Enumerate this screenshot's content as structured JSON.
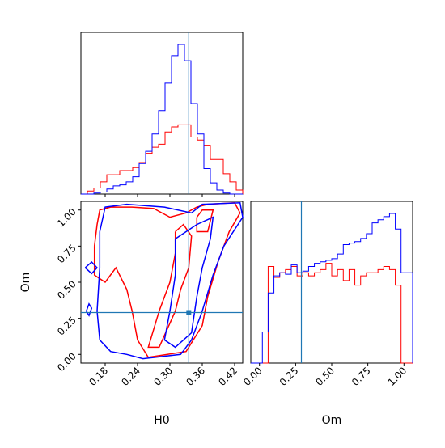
{
  "chart_data": {
    "type": "corner",
    "parameters": [
      "H0",
      "Om"
    ],
    "truth": {
      "H0": 0.335,
      "Om": 0.29
    },
    "colors": {
      "series_a": "#ff0000",
      "series_b": "#0000ff",
      "truth": "#1f77b4"
    },
    "hist_H0": {
      "bin_edges": [
        0.135,
        0.147,
        0.159,
        0.171,
        0.183,
        0.195,
        0.207,
        0.219,
        0.231,
        0.243,
        0.255,
        0.267,
        0.279,
        0.291,
        0.303,
        0.315,
        0.327,
        0.339,
        0.351,
        0.363,
        0.375,
        0.387,
        0.399,
        0.411,
        0.423,
        0.435
      ],
      "series": [
        {
          "color": "red",
          "counts": [
            0,
            3,
            6,
            12,
            19,
            19,
            23,
            23,
            26,
            31,
            40,
            46,
            49,
            61,
            66,
            68,
            68,
            56,
            53,
            48,
            34,
            34,
            20,
            12,
            4
          ]
        },
        {
          "color": "blue",
          "counts": [
            0,
            0,
            1,
            2,
            5,
            8,
            9,
            12,
            17,
            30,
            42,
            59,
            82,
            109,
            136,
            147,
            131,
            89,
            59,
            25,
            11,
            4,
            1,
            0,
            0
          ]
        }
      ]
    },
    "hist_Om": {
      "bin_edges": [
        -0.06,
        -0.02,
        0.02,
        0.06,
        0.1,
        0.14,
        0.18,
        0.22,
        0.26,
        0.3,
        0.34,
        0.38,
        0.42,
        0.46,
        0.5,
        0.54,
        0.58,
        0.62,
        0.66,
        0.7,
        0.74,
        0.78,
        0.82,
        0.86,
        0.9,
        0.94,
        0.98,
        1.02,
        1.06
      ],
      "series": [
        {
          "color": "red",
          "counts": [
            0,
            0,
            0,
            62,
            55,
            58,
            60,
            62,
            56,
            58,
            56,
            58,
            60,
            64,
            56,
            60,
            53,
            60,
            50,
            56,
            58,
            58,
            60,
            62,
            60,
            50,
            0,
            0
          ]
        },
        {
          "color": "blue",
          "counts": [
            0,
            0,
            20,
            45,
            56,
            58,
            57,
            63,
            58,
            59,
            62,
            64,
            65,
            66,
            67,
            70,
            76,
            77,
            78,
            80,
            83,
            90,
            92,
            94,
            96,
            86,
            58,
            58
          ]
        }
      ]
    },
    "xlabel_H0": "H0",
    "xlabel_Om": "Om",
    "ylabel_Om": "Om",
    "xticks_H0": [
      "0.18",
      "0.24",
      "0.30",
      "0.36",
      "0.42"
    ],
    "xticks_H0_values": [
      0.18,
      0.24,
      0.3,
      0.36,
      0.42
    ],
    "yticks_Om": [
      "0.00",
      "0.25",
      "0.50",
      "0.75",
      "1.00"
    ],
    "yticks_Om_values": [
      0.0,
      0.25,
      0.5,
      0.75,
      1.0
    ],
    "xticks_Om": [
      "0.00",
      "0.25",
      "0.50",
      "0.75",
      "1.00"
    ],
    "xticks_Om_values": [
      0.0,
      0.25,
      0.5,
      0.75,
      1.0
    ],
    "xlim_H0": [
      0.135,
      0.435
    ],
    "ylim_Om": [
      -0.06,
      1.06
    ],
    "xlim_Om": [
      -0.06,
      1.06
    ],
    "contours": [
      {
        "color": "red",
        "points": [
          [
            0.16,
            0.75
          ],
          [
            0.165,
            0.9
          ],
          [
            0.17,
            1.0
          ],
          [
            0.19,
            1.02
          ],
          [
            0.23,
            1.02
          ],
          [
            0.27,
            1.01
          ],
          [
            0.3,
            0.95
          ],
          [
            0.33,
            0.98
          ],
          [
            0.35,
            1.02
          ],
          [
            0.37,
            1.04
          ],
          [
            0.42,
            1.05
          ],
          [
            0.43,
            0.98
          ],
          [
            0.41,
            0.85
          ],
          [
            0.39,
            0.65
          ],
          [
            0.37,
            0.4
          ],
          [
            0.36,
            0.2
          ],
          [
            0.33,
            0.02
          ],
          [
            0.26,
            -0.02
          ],
          [
            0.24,
            0.1
          ],
          [
            0.23,
            0.3
          ],
          [
            0.22,
            0.45
          ],
          [
            0.2,
            0.6
          ],
          [
            0.18,
            0.5
          ],
          [
            0.16,
            0.55
          ],
          [
            0.16,
            0.75
          ]
        ]
      },
      {
        "color": "red",
        "points": [
          [
            0.35,
            0.95
          ],
          [
            0.36,
            1.0
          ],
          [
            0.38,
            1.0
          ],
          [
            0.37,
            0.85
          ],
          [
            0.35,
            0.85
          ],
          [
            0.35,
            0.95
          ]
        ]
      },
      {
        "color": "red",
        "points": [
          [
            0.31,
            0.85
          ],
          [
            0.325,
            0.9
          ],
          [
            0.34,
            0.82
          ],
          [
            0.335,
            0.6
          ],
          [
            0.32,
            0.45
          ],
          [
            0.31,
            0.3
          ],
          [
            0.28,
            0.05
          ],
          [
            0.26,
            0.05
          ],
          [
            0.28,
            0.3
          ],
          [
            0.3,
            0.5
          ],
          [
            0.31,
            0.7
          ],
          [
            0.31,
            0.85
          ]
        ]
      },
      {
        "color": "blue",
        "points": [
          [
            0.17,
            0.85
          ],
          [
            0.18,
            1.02
          ],
          [
            0.22,
            1.04
          ],
          [
            0.29,
            1.02
          ],
          [
            0.34,
            0.98
          ],
          [
            0.36,
            1.04
          ],
          [
            0.43,
            1.05
          ],
          [
            0.435,
            0.95
          ],
          [
            0.4,
            0.75
          ],
          [
            0.38,
            0.55
          ],
          [
            0.36,
            0.3
          ],
          [
            0.34,
            0.1
          ],
          [
            0.32,
            0.0
          ],
          [
            0.25,
            -0.03
          ],
          [
            0.22,
            0.0
          ],
          [
            0.19,
            0.02
          ],
          [
            0.17,
            0.1
          ],
          [
            0.165,
            0.3
          ],
          [
            0.17,
            0.6
          ],
          [
            0.17,
            0.85
          ]
        ]
      },
      {
        "color": "blue",
        "points": [
          [
            0.31,
            0.8
          ],
          [
            0.33,
            0.85
          ],
          [
            0.35,
            0.9
          ],
          [
            0.38,
            0.95
          ],
          [
            0.375,
            0.8
          ],
          [
            0.36,
            0.6
          ],
          [
            0.35,
            0.4
          ],
          [
            0.34,
            0.15
          ],
          [
            0.31,
            0.05
          ],
          [
            0.29,
            0.1
          ],
          [
            0.3,
            0.3
          ],
          [
            0.31,
            0.55
          ],
          [
            0.31,
            0.8
          ]
        ]
      },
      {
        "color": "blue",
        "points": [
          [
            0.145,
            0.3
          ],
          [
            0.15,
            0.35
          ],
          [
            0.155,
            0.32
          ],
          [
            0.15,
            0.27
          ],
          [
            0.145,
            0.3
          ]
        ]
      },
      {
        "color": "blue",
        "points": [
          [
            0.143,
            0.6
          ],
          [
            0.155,
            0.64
          ],
          [
            0.165,
            0.6
          ],
          [
            0.155,
            0.56
          ],
          [
            0.143,
            0.6
          ]
        ]
      }
    ]
  }
}
